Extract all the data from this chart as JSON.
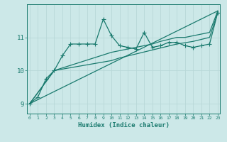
{
  "title": "",
  "xlabel": "Humidex (Indice chaleur)",
  "background_color": "#cce8e8",
  "line_color": "#1a7a6e",
  "x_values": [
    0,
    1,
    2,
    3,
    4,
    5,
    6,
    7,
    8,
    9,
    10,
    11,
    12,
    13,
    14,
    15,
    16,
    17,
    18,
    19,
    20,
    21,
    22,
    23
  ],
  "series1": [
    9.0,
    9.2,
    9.75,
    10.0,
    10.45,
    10.8,
    10.8,
    10.8,
    10.8,
    11.55,
    11.05,
    10.75,
    10.7,
    10.65,
    11.15,
    10.7,
    10.75,
    10.85,
    10.85,
    10.75,
    10.7,
    10.75,
    10.8,
    11.75
  ],
  "series2_x": [
    0,
    23
  ],
  "series2_y": [
    9.0,
    11.8
  ],
  "series3_x": [
    0,
    3,
    10,
    11,
    12,
    13,
    14,
    15,
    16,
    17,
    18,
    19,
    20,
    21,
    22,
    23
  ],
  "series3_y": [
    9.0,
    10.0,
    10.55,
    10.6,
    10.65,
    10.7,
    10.75,
    10.8,
    10.88,
    10.94,
    11.0,
    11.0,
    11.05,
    11.1,
    11.15,
    11.8
  ],
  "series4_x": [
    0,
    3,
    10,
    11,
    12,
    13,
    14,
    15,
    16,
    17,
    18,
    19,
    20,
    21,
    22,
    23
  ],
  "series4_y": [
    9.0,
    10.0,
    10.3,
    10.38,
    10.44,
    10.5,
    10.56,
    10.62,
    10.68,
    10.74,
    10.8,
    10.84,
    10.88,
    10.94,
    11.0,
    11.75
  ],
  "ylim": [
    8.7,
    12.0
  ],
  "xlim": [
    0,
    23
  ],
  "yticks": [
    9,
    10,
    11
  ],
  "xticks": [
    0,
    1,
    2,
    3,
    4,
    5,
    6,
    7,
    8,
    9,
    10,
    11,
    12,
    13,
    14,
    15,
    16,
    17,
    18,
    19,
    20,
    21,
    22,
    23
  ],
  "grid_color": "#b8d8d8",
  "spine_color": "#1a7a6e",
  "font_color": "#1a7a6e",
  "line_width": 0.9,
  "marker_size": 2.5
}
